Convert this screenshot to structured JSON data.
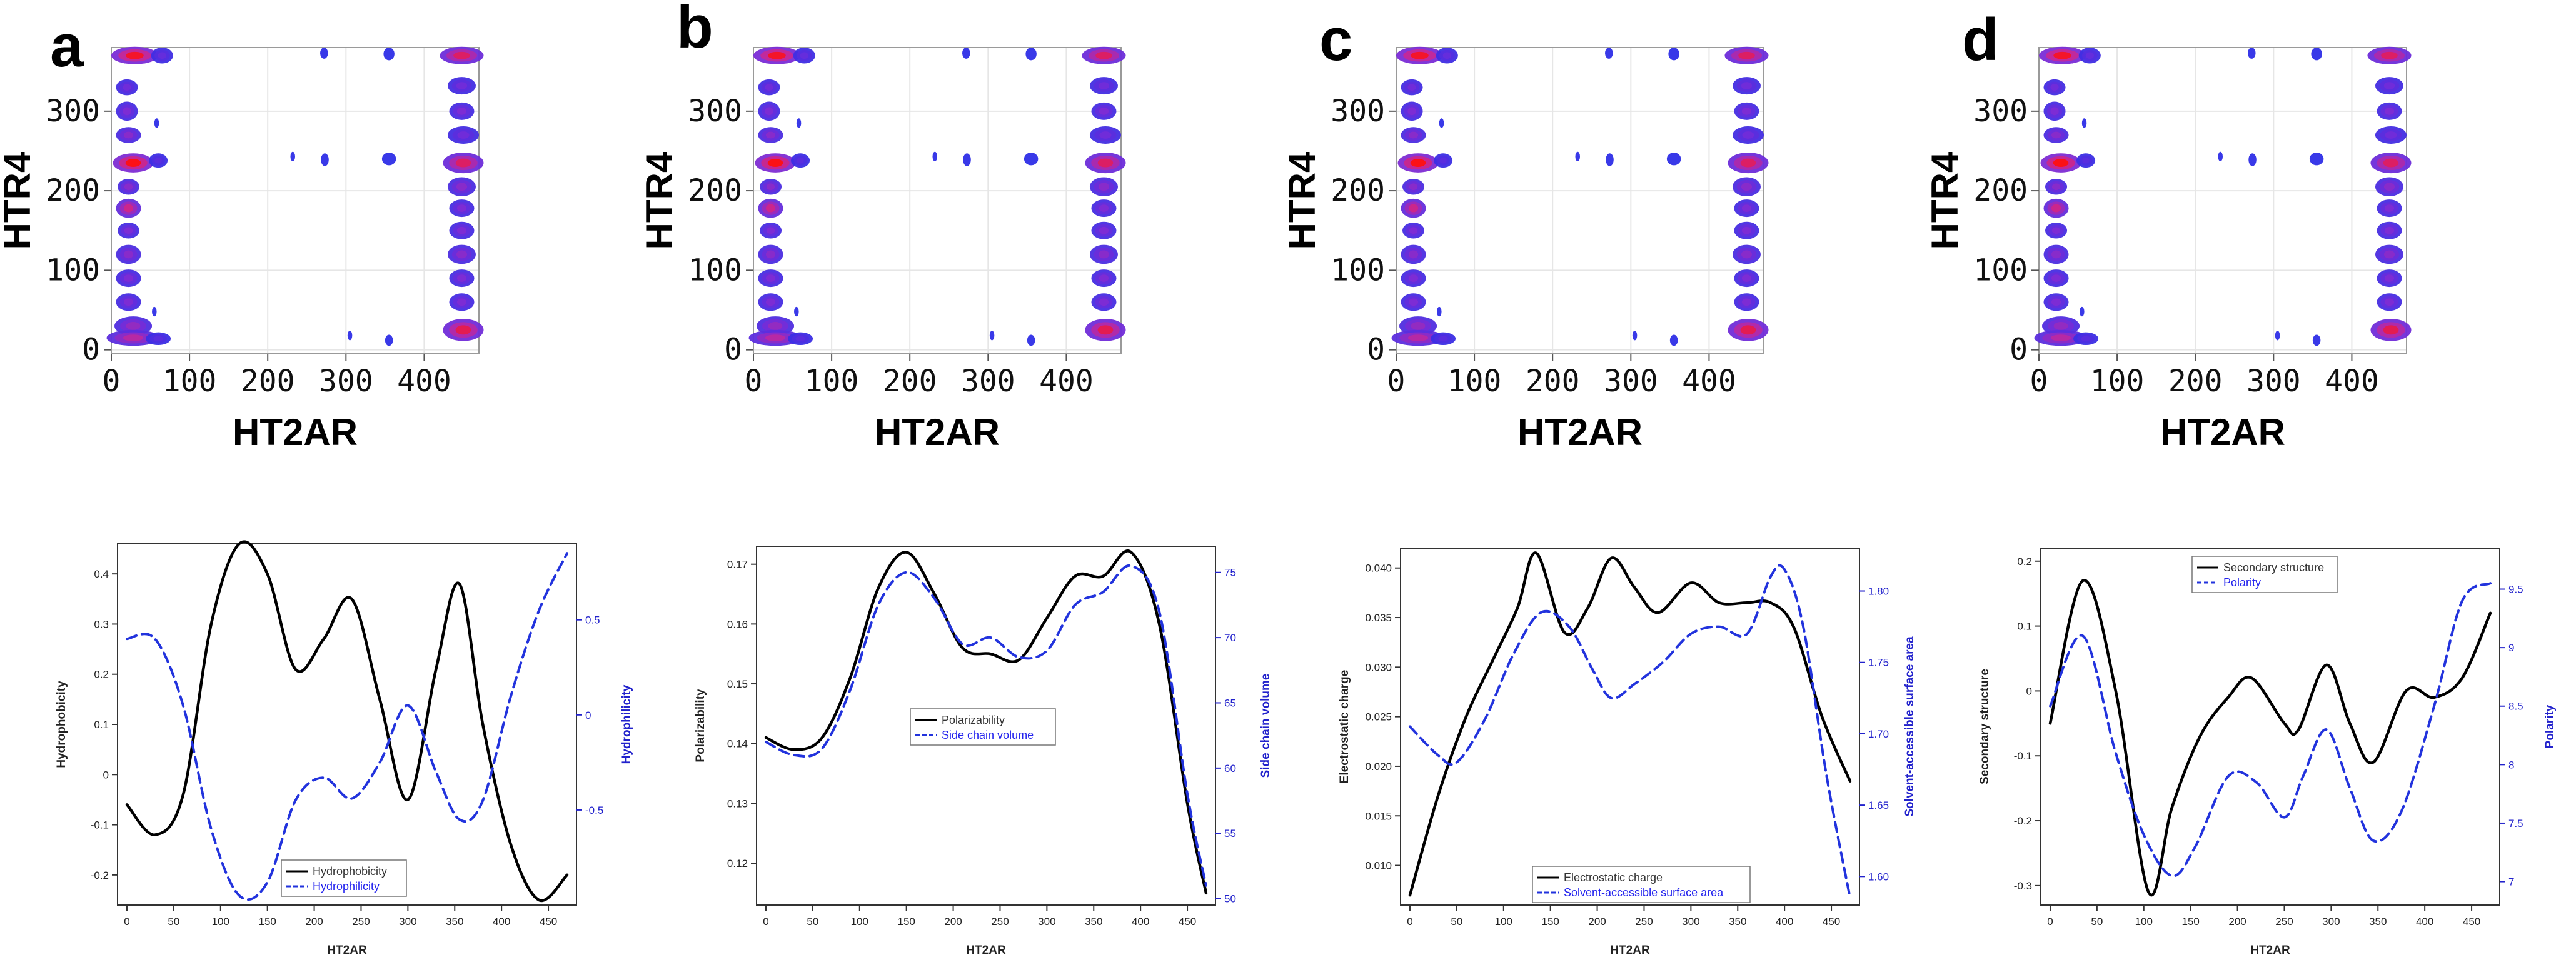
{
  "chart_data": [
    {
      "type": "heatmap",
      "panel": "a",
      "xlabel": "HT2AR",
      "ylabel": "HTR4",
      "xticks": [
        0,
        100,
        200,
        300,
        400
      ],
      "yticks": [
        0,
        100,
        200,
        300
      ],
      "xlim": [
        0,
        470
      ],
      "ylim": [
        -5,
        380
      ],
      "grid": true,
      "blobs": [
        {
          "x": 30,
          "y": 370,
          "w": 30,
          "h": 11,
          "v": 0.95
        },
        {
          "x": 65,
          "y": 370,
          "w": 14,
          "h": 10,
          "v": 0.25
        },
        {
          "x": 20,
          "y": 330,
          "w": 14,
          "h": 10,
          "v": 0.3
        },
        {
          "x": 20,
          "y": 300,
          "w": 14,
          "h": 12,
          "v": 0.35
        },
        {
          "x": 22,
          "y": 270,
          "w": 16,
          "h": 10,
          "v": 0.4
        },
        {
          "x": 28,
          "y": 235,
          "w": 26,
          "h": 12,
          "v": 1.0
        },
        {
          "x": 60,
          "y": 238,
          "w": 12,
          "h": 9,
          "v": 0.2
        },
        {
          "x": 22,
          "y": 205,
          "w": 14,
          "h": 10,
          "v": 0.4
        },
        {
          "x": 22,
          "y": 178,
          "w": 16,
          "h": 12,
          "v": 0.7
        },
        {
          "x": 22,
          "y": 150,
          "w": 14,
          "h": 10,
          "v": 0.35
        },
        {
          "x": 22,
          "y": 120,
          "w": 16,
          "h": 12,
          "v": 0.4
        },
        {
          "x": 22,
          "y": 90,
          "w": 16,
          "h": 11,
          "v": 0.35
        },
        {
          "x": 22,
          "y": 60,
          "w": 16,
          "h": 11,
          "v": 0.35
        },
        {
          "x": 28,
          "y": 30,
          "w": 24,
          "h": 12,
          "v": 0.45
        },
        {
          "x": 28,
          "y": 15,
          "w": 34,
          "h": 10,
          "v": 0.6
        },
        {
          "x": 60,
          "y": 14,
          "w": 16,
          "h": 8,
          "v": 0.2
        },
        {
          "x": 58,
          "y": 285,
          "w": 3,
          "h": 6,
          "v": 0.05
        },
        {
          "x": 55,
          "y": 48,
          "w": 3,
          "h": 6,
          "v": 0.05
        },
        {
          "x": 232,
          "y": 243,
          "w": 3,
          "h": 6,
          "v": 0.05
        },
        {
          "x": 272,
          "y": 373,
          "w": 5,
          "h": 7,
          "v": 0.05
        },
        {
          "x": 273,
          "y": 239,
          "w": 5,
          "h": 8,
          "v": 0.05
        },
        {
          "x": 305,
          "y": 18,
          "w": 3,
          "h": 6,
          "v": 0.05
        },
        {
          "x": 355,
          "y": 372,
          "w": 7,
          "h": 8,
          "v": 0.05
        },
        {
          "x": 355,
          "y": 240,
          "w": 9,
          "h": 8,
          "v": 0.05
        },
        {
          "x": 355,
          "y": 12,
          "w": 5,
          "h": 7,
          "v": 0.05
        },
        {
          "x": 448,
          "y": 370,
          "w": 28,
          "h": 11,
          "v": 0.8
        },
        {
          "x": 448,
          "y": 332,
          "w": 18,
          "h": 11,
          "v": 0.3
        },
        {
          "x": 448,
          "y": 300,
          "w": 16,
          "h": 11,
          "v": 0.35
        },
        {
          "x": 450,
          "y": 270,
          "w": 20,
          "h": 11,
          "v": 0.3
        },
        {
          "x": 450,
          "y": 235,
          "w": 26,
          "h": 13,
          "v": 0.8
        },
        {
          "x": 448,
          "y": 205,
          "w": 18,
          "h": 12,
          "v": 0.4
        },
        {
          "x": 448,
          "y": 178,
          "w": 16,
          "h": 11,
          "v": 0.35
        },
        {
          "x": 448,
          "y": 150,
          "w": 16,
          "h": 11,
          "v": 0.35
        },
        {
          "x": 448,
          "y": 120,
          "w": 18,
          "h": 12,
          "v": 0.4
        },
        {
          "x": 448,
          "y": 90,
          "w": 16,
          "h": 11,
          "v": 0.35
        },
        {
          "x": 448,
          "y": 60,
          "w": 16,
          "h": 11,
          "v": 0.35
        },
        {
          "x": 450,
          "y": 25,
          "w": 26,
          "h": 14,
          "v": 0.85
        }
      ]
    },
    {
      "type": "heatmap",
      "panel": "b",
      "xlabel": "HT2AR",
      "ylabel": "HTR4",
      "xticks": [
        0,
        100,
        200,
        300,
        400
      ],
      "yticks": [
        0,
        100,
        200,
        300
      ],
      "xlim": [
        0,
        470
      ],
      "ylim": [
        -5,
        380
      ],
      "grid": true,
      "blobs": "same-as-a"
    },
    {
      "type": "heatmap",
      "panel": "c",
      "xlabel": "HT2AR",
      "ylabel": "HTR4",
      "xticks": [
        0,
        100,
        200,
        300,
        400
      ],
      "yticks": [
        0,
        100,
        200,
        300
      ],
      "xlim": [
        0,
        470
      ],
      "ylim": [
        -5,
        380
      ],
      "grid": true,
      "blobs": "same-as-a"
    },
    {
      "type": "heatmap",
      "panel": "d",
      "xlabel": "HT2AR",
      "ylabel": "HTR4",
      "xticks": [
        0,
        100,
        200,
        300,
        400
      ],
      "yticks": [
        0,
        100,
        200,
        300
      ],
      "xlim": [
        0,
        470
      ],
      "ylim": [
        -5,
        380
      ],
      "grid": true,
      "blobs": "same-as-a"
    },
    {
      "type": "line",
      "panel": "a",
      "xlabel": "HT2AR",
      "ylabel": "Hydrophobicity",
      "ylabel_right": "Hydrophilicity",
      "xticks": [
        0,
        50,
        100,
        150,
        200,
        250,
        300,
        350,
        400,
        450
      ],
      "yticks": [
        -0.2,
        -0.1,
        0.0,
        0.1,
        0.2,
        0.3,
        0.4
      ],
      "yticks_right": [
        -0.5,
        0.0,
        0.5
      ],
      "xlim": [
        -10,
        480
      ],
      "ylim": [
        -0.26,
        0.46
      ],
      "ylim_right": [
        -1.0,
        0.9
      ],
      "legend": "bottom-center",
      "series": [
        {
          "name": "Hydrophobicity",
          "axis": "left",
          "style": "solid",
          "color": "#000000",
          "x": [
            0,
            30,
            60,
            90,
            120,
            150,
            180,
            210,
            240,
            270,
            300,
            330,
            355,
            380,
            410,
            440,
            470
          ],
          "values": [
            -0.06,
            -0.12,
            -0.04,
            0.3,
            0.46,
            0.4,
            0.21,
            0.27,
            0.35,
            0.15,
            -0.05,
            0.21,
            0.38,
            0.1,
            -0.14,
            -0.25,
            -0.2
          ]
        },
        {
          "name": "Hydrophilicity",
          "axis": "right",
          "style": "dashed",
          "color": "#2233dd",
          "x": [
            0,
            30,
            60,
            90,
            120,
            150,
            180,
            210,
            240,
            270,
            300,
            330,
            355,
            380,
            410,
            440,
            470
          ],
          "values": [
            0.4,
            0.4,
            0.05,
            -0.6,
            -0.95,
            -0.88,
            -0.45,
            -0.33,
            -0.44,
            -0.25,
            0.05,
            -0.3,
            -0.55,
            -0.45,
            0.1,
            0.55,
            0.85
          ]
        }
      ]
    },
    {
      "type": "line",
      "panel": "b",
      "xlabel": "HT2AR",
      "ylabel": "Polarizability",
      "ylabel_right": "Side chain volume",
      "xticks": [
        0,
        50,
        100,
        150,
        200,
        250,
        300,
        350,
        400,
        450
      ],
      "yticks": [
        0.12,
        0.13,
        0.14,
        0.15,
        0.16,
        0.17
      ],
      "yticks_right": [
        50,
        55,
        60,
        65,
        70,
        75
      ],
      "xlim": [
        -10,
        480
      ],
      "ylim": [
        0.113,
        0.173
      ],
      "ylim_right": [
        49.5,
        77
      ],
      "legend": "center",
      "series": [
        {
          "name": "Polarizability",
          "axis": "left",
          "style": "solid",
          "color": "#000000",
          "x": [
            0,
            30,
            60,
            90,
            120,
            150,
            180,
            210,
            240,
            270,
            300,
            330,
            360,
            390,
            420,
            450,
            470
          ],
          "values": [
            0.141,
            0.139,
            0.141,
            0.151,
            0.166,
            0.172,
            0.165,
            0.156,
            0.155,
            0.154,
            0.161,
            0.168,
            0.168,
            0.172,
            0.16,
            0.13,
            0.115
          ]
        },
        {
          "name": "Side chain volume",
          "axis": "right",
          "style": "dashed",
          "color": "#2233dd",
          "x": [
            0,
            30,
            60,
            90,
            120,
            150,
            180,
            210,
            240,
            270,
            300,
            330,
            360,
            390,
            420,
            450,
            470
          ],
          "values": [
            62,
            61,
            61.5,
            66,
            72.5,
            75,
            73,
            69.5,
            70,
            68.5,
            69,
            72.5,
            73.5,
            75.5,
            72,
            58,
            51
          ]
        }
      ]
    },
    {
      "type": "line",
      "panel": "c",
      "xlabel": "HT2AR",
      "ylabel": "Electrostatic charge",
      "ylabel_right": "Solvent-accessible surface area",
      "xticks": [
        0,
        50,
        100,
        150,
        200,
        250,
        300,
        350,
        400,
        450
      ],
      "yticks": [
        0.01,
        0.015,
        0.02,
        0.025,
        0.03,
        0.035,
        0.04
      ],
      "yticks_right": [
        1.6,
        1.65,
        1.7,
        1.75,
        1.8
      ],
      "yticklabels": [
        "0.010",
        "0.015",
        "0.020",
        "0.025",
        "0.030",
        "0.035",
        "0.040"
      ],
      "yticklabels_right": [
        "1.60",
        "1.65",
        "1.70",
        "1.75",
        "1.80"
      ],
      "xlim": [
        -10,
        480
      ],
      "ylim": [
        0.006,
        0.042
      ],
      "ylim_right": [
        1.58,
        1.83
      ],
      "legend": "bottom-center",
      "series": [
        {
          "name": "Electrostatic charge",
          "axis": "left",
          "style": "solid",
          "color": "#000000",
          "x": [
            0,
            30,
            60,
            90,
            115,
            135,
            165,
            190,
            215,
            240,
            265,
            300,
            330,
            360,
            385,
            410,
            440,
            470
          ],
          "values": [
            0.007,
            0.017,
            0.025,
            0.031,
            0.036,
            0.0415,
            0.0335,
            0.036,
            0.041,
            0.038,
            0.0355,
            0.0385,
            0.0365,
            0.0365,
            0.0365,
            0.034,
            0.025,
            0.0185
          ]
        },
        {
          "name": "Solvent-accessible surface area",
          "axis": "right",
          "style": "dashed",
          "color": "#2233dd",
          "x": [
            0,
            30,
            50,
            80,
            110,
            140,
            170,
            195,
            215,
            240,
            270,
            300,
            330,
            360,
            385,
            400,
            420,
            445,
            470
          ],
          "values": [
            1.705,
            1.685,
            1.68,
            1.71,
            1.755,
            1.785,
            1.775,
            1.745,
            1.725,
            1.735,
            1.75,
            1.77,
            1.775,
            1.77,
            1.81,
            1.815,
            1.775,
            1.67,
            1.585
          ]
        }
      ]
    },
    {
      "type": "line",
      "panel": "d",
      "xlabel": "HT2AR",
      "ylabel": "Secondary structure",
      "ylabel_right": "Polarity",
      "xticks": [
        0,
        50,
        100,
        150,
        200,
        250,
        300,
        350,
        400,
        450
      ],
      "yticks": [
        -0.3,
        -0.2,
        -0.1,
        0.0,
        0.1,
        0.2
      ],
      "yticks_right": [
        7.0,
        7.5,
        8.0,
        8.5,
        9.0,
        9.5
      ],
      "xlim": [
        -10,
        480
      ],
      "ylim": [
        -0.33,
        0.22
      ],
      "ylim_right": [
        6.8,
        9.85
      ],
      "legend": "top-center",
      "series": [
        {
          "name": "Secondary structure",
          "axis": "left",
          "style": "solid",
          "color": "#000000",
          "x": [
            0,
            35,
            70,
            105,
            130,
            160,
            190,
            215,
            250,
            265,
            295,
            320,
            345,
            380,
            410,
            440,
            470
          ],
          "values": [
            -0.05,
            0.17,
            0.0,
            -0.31,
            -0.18,
            -0.07,
            -0.01,
            0.02,
            -0.05,
            -0.06,
            0.04,
            -0.05,
            -0.11,
            0.0,
            -0.01,
            0.02,
            0.12
          ]
        },
        {
          "name": "Polarity",
          "axis": "right",
          "style": "dashed",
          "color": "#2233dd",
          "x": [
            0,
            35,
            70,
            100,
            130,
            155,
            190,
            220,
            250,
            270,
            295,
            320,
            345,
            375,
            410,
            440,
            470
          ],
          "values": [
            8.5,
            9.1,
            8.1,
            7.4,
            7.05,
            7.3,
            7.9,
            7.85,
            7.55,
            7.9,
            8.3,
            7.8,
            7.35,
            7.6,
            8.5,
            9.4,
            9.55
          ]
        }
      ]
    }
  ]
}
